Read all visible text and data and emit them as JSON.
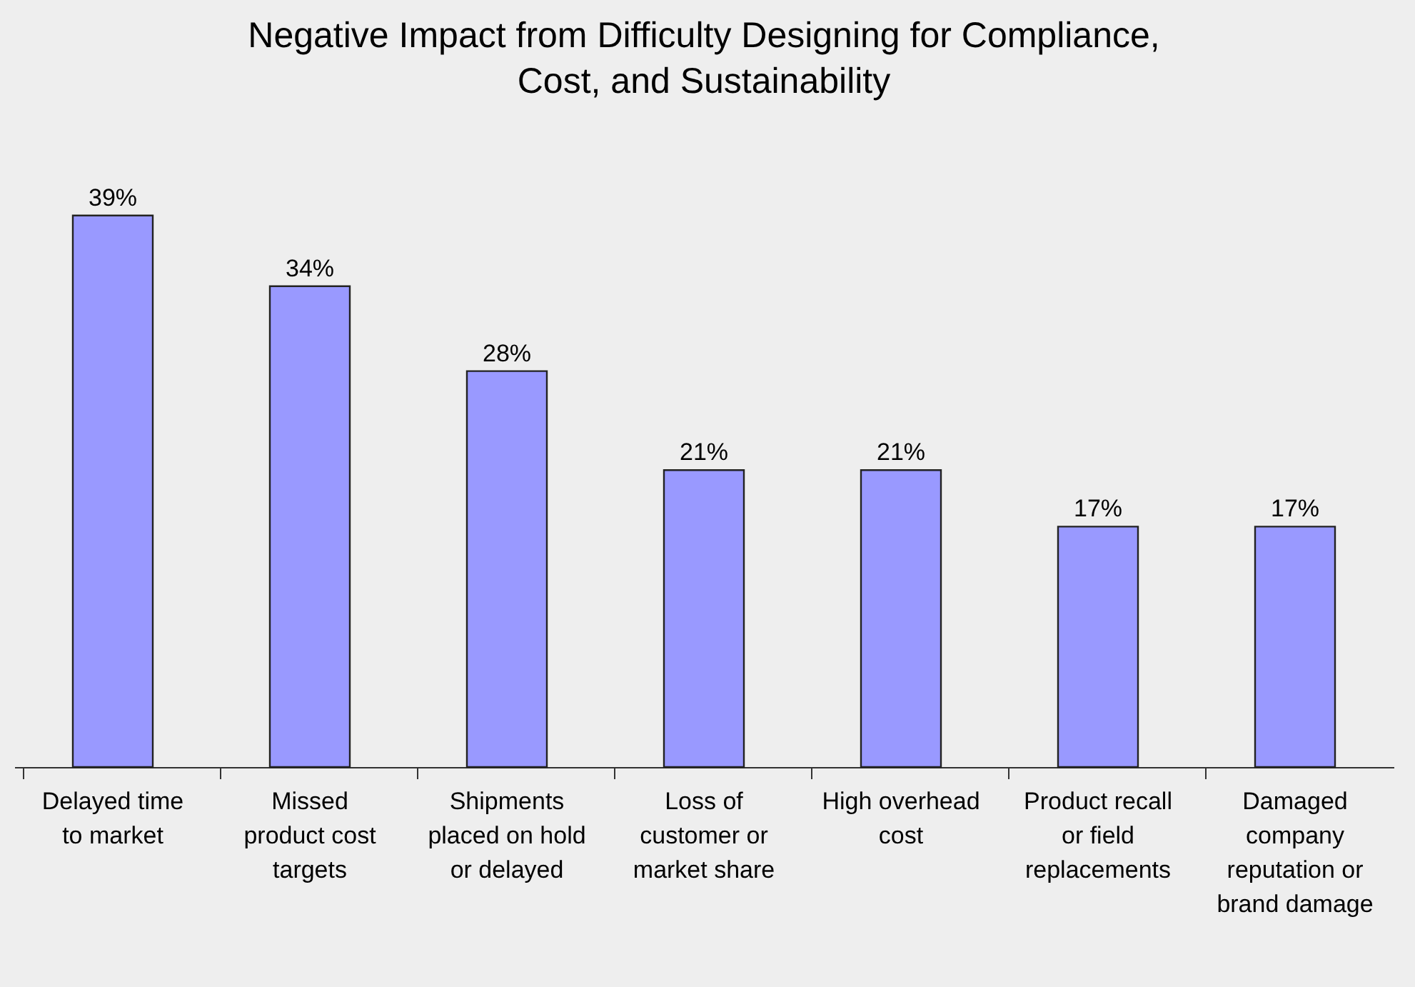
{
  "chart_data": {
    "type": "bar",
    "title": "Negative Impact from Difficulty Designing for Compliance,\nCost, and Sustainability",
    "categories": [
      "Delayed time\nto market",
      "Missed\nproduct cost\ntargets",
      "Shipments\nplaced on hold\nor delayed",
      "Loss of\ncustomer or\nmarket share",
      "High overhead\ncost",
      "Product recall\nor field\nreplacements",
      "Damaged\ncompany\nreputation or\nbrand damage"
    ],
    "values": [
      39,
      34,
      28,
      21,
      21,
      17,
      17
    ],
    "color": "#9999ff",
    "data_labels": true,
    "value_labels": [
      "39%",
      "34%",
      "28%",
      "21%",
      "21%",
      "17%",
      "17%"
    ],
    "grid": false
  }
}
